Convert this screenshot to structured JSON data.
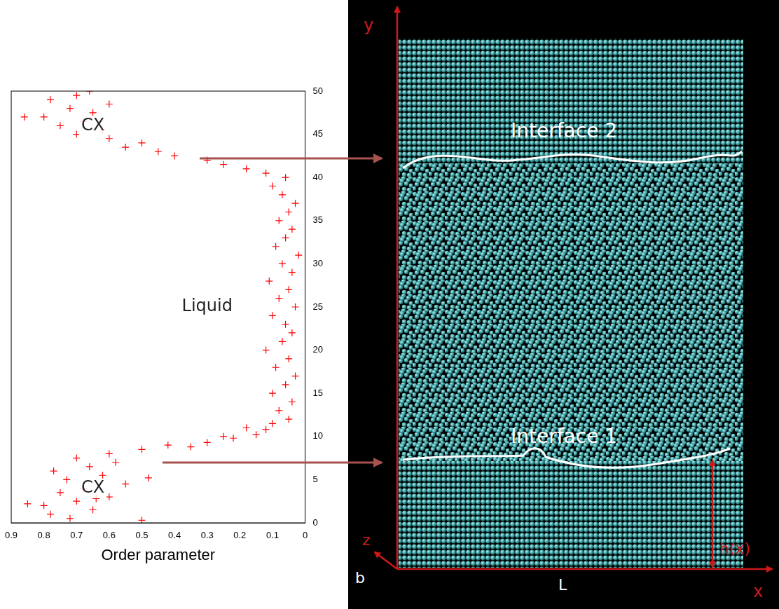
{
  "chart_data": {
    "type": "scatter",
    "x_label": "Order parameter",
    "xlim": [
      0.9,
      0
    ],
    "xticks": [
      0.9,
      0.8,
      0.7,
      0.6,
      0.5,
      0.4,
      0.3,
      0.2,
      0.1,
      0
    ],
    "ylim": [
      0,
      50
    ],
    "yticks": [
      0,
      5,
      10,
      15,
      20,
      25,
      30,
      35,
      40,
      45,
      50
    ],
    "grid": false,
    "color": "#ff0000",
    "marker": "plus",
    "annotations": [
      {
        "text": "CX",
        "x": 0.65,
        "y": 4
      },
      {
        "text": "Liquid",
        "x": 0.3,
        "y": 25
      },
      {
        "text": "CX",
        "x": 0.65,
        "y": 46
      }
    ],
    "x": [
      0.72,
      0.78,
      0.65,
      0.8,
      0.7,
      0.6,
      0.75,
      0.68,
      0.55,
      0.73,
      0.62,
      0.77,
      0.66,
      0.58,
      0.7,
      0.6,
      0.85,
      0.5,
      0.48,
      0.64,
      0.5,
      0.42,
      0.3,
      0.35,
      0.22,
      0.15,
      0.25,
      0.12,
      0.1,
      0.18,
      0.05,
      0.08,
      0.04,
      0.1,
      0.06,
      0.03,
      0.09,
      0.05,
      0.12,
      0.07,
      0.04,
      0.06,
      0.1,
      0.03,
      0.08,
      0.05,
      0.11,
      0.04,
      0.07,
      0.02,
      0.09,
      0.06,
      0.04,
      0.08,
      0.05,
      0.03,
      0.07,
      0.1,
      0.06,
      0.12,
      0.18,
      0.25,
      0.3,
      0.4,
      0.45,
      0.55,
      0.5,
      0.6,
      0.7,
      0.62,
      0.75,
      0.68,
      0.8,
      0.86,
      0.65,
      0.72,
      0.6,
      0.78,
      0.7,
      0.66
    ],
    "values": [
      0.5,
      1,
      1.5,
      2,
      2.5,
      3,
      3.5,
      4,
      4.5,
      5,
      5.5,
      6,
      6.5,
      7,
      7.5,
      8,
      2.2,
      0.3,
      5.2,
      2.8,
      8.5,
      9,
      9.3,
      8.8,
      9.8,
      10.2,
      10,
      10.8,
      11.5,
      11,
      12,
      13,
      14,
      15,
      16,
      17,
      18,
      19,
      20,
      21,
      22,
      23,
      24,
      25,
      26,
      27,
      28,
      29,
      30,
      31,
      32,
      33,
      34,
      35,
      36,
      37,
      38,
      39,
      40,
      40.5,
      41,
      41.5,
      42,
      42.5,
      43,
      43.5,
      44,
      44.5,
      45,
      45.5,
      46,
      46.5,
      47,
      47,
      47.5,
      48,
      48.5,
      49,
      49.5,
      50
    ]
  },
  "diagram": {
    "axes": {
      "vertical": "y",
      "horizontal": "x",
      "depth": "z"
    },
    "depth_label": "b",
    "width_label": "L",
    "height_label": "h(x)",
    "interfaces": [
      "Interface 2",
      "Interface 1"
    ]
  }
}
